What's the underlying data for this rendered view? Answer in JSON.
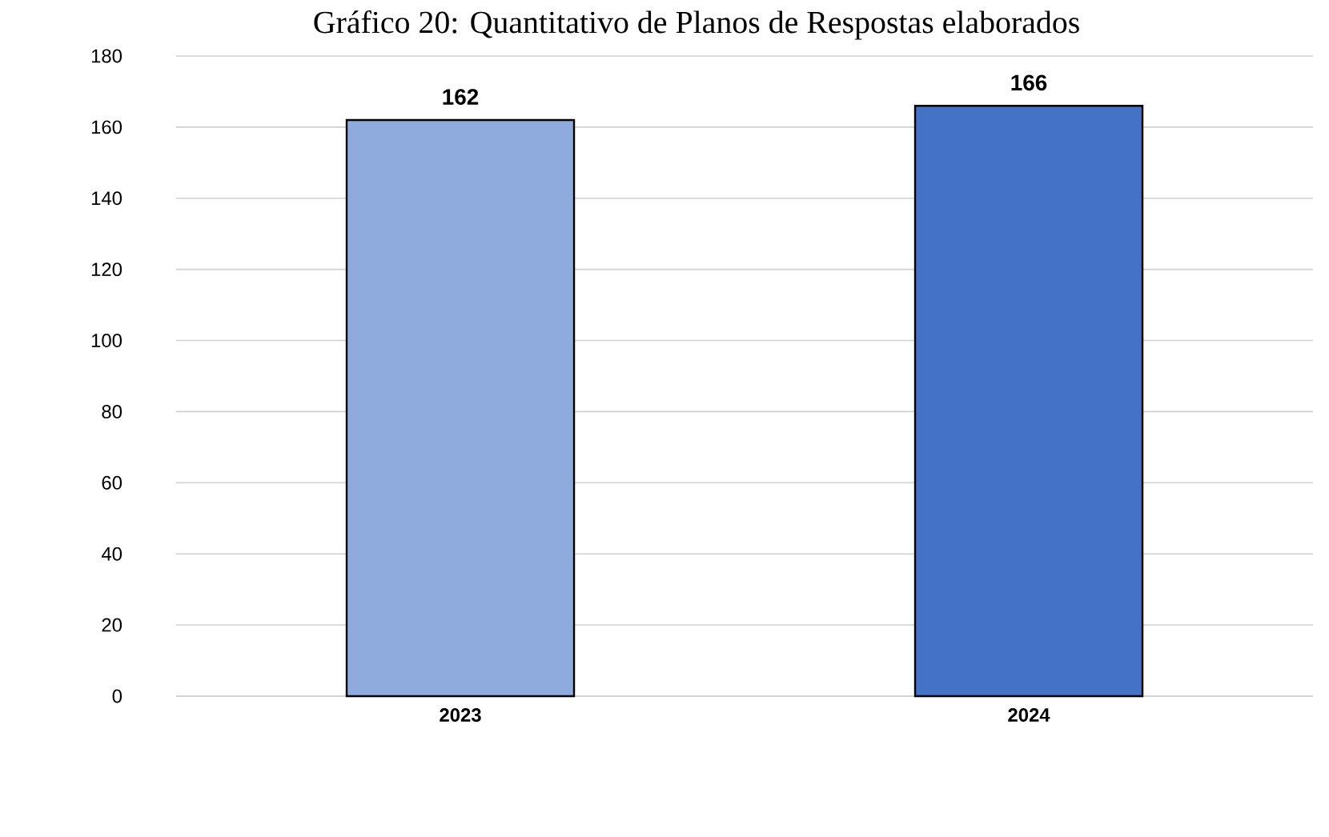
{
  "chart_data": {
    "type": "bar",
    "title": "Gráfico 20: Quantitativo de Planos de Respostas elaborados",
    "categories": [
      "2023",
      "2024"
    ],
    "values": [
      162,
      166
    ],
    "colors": [
      "#8faadc",
      "#4472c4"
    ],
    "ylim": [
      0,
      180
    ],
    "yticks": [
      0,
      20,
      40,
      60,
      80,
      100,
      120,
      140,
      160,
      180
    ],
    "grid": "y",
    "data_labels": true
  }
}
